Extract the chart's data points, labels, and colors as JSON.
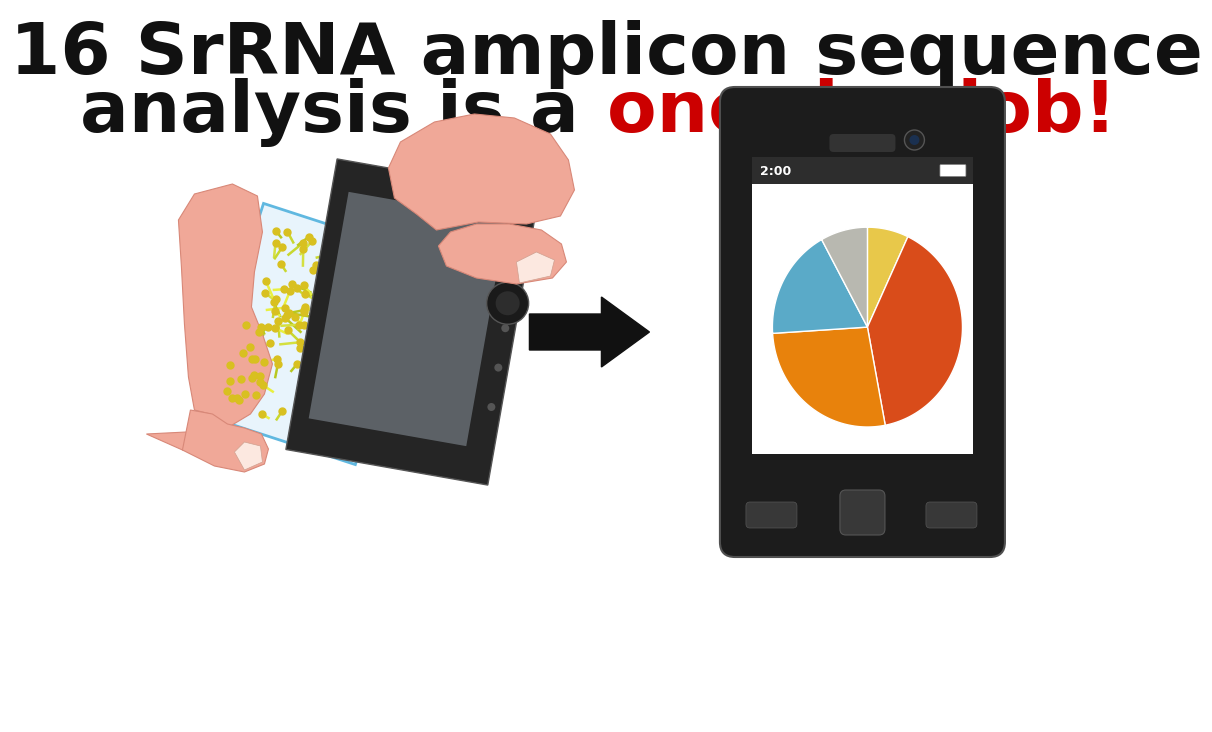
{
  "bg_color": "#ffffff",
  "title_line1": "16 SrRNA amplicon sequence",
  "title_line2_black": "analysis is a ",
  "title_line2_red": "one-day job!",
  "title_fontsize": 52,
  "title_color_black": "#111111",
  "title_color_red": "#cc0000",
  "pie_slices": [
    40,
    27,
    18,
    8,
    7
  ],
  "pie_colors": [
    "#d94c1a",
    "#e8820c",
    "#5aaac8",
    "#b8b8b0",
    "#e8c84a"
  ],
  "pie_order_indices": [
    4,
    0,
    1,
    2,
    3
  ],
  "arrow_color": "#111111",
  "phone_color": "#1c1c1c",
  "phone_screen_color": "#ffffff",
  "phone_status_color": "#2d2d2d",
  "phone_time": "2:00",
  "hand_color": "#f0a898",
  "hand_edge_color": "#d88878",
  "nail_color": "#fce8e0",
  "colony_colors": [
    "#c8d830",
    "#d4e040",
    "#e8f040",
    "#b8c820"
  ],
  "colony_head_color": "#d8c020",
  "slide_fill": "#e8f4fc",
  "slide_edge": "#60b8e0"
}
